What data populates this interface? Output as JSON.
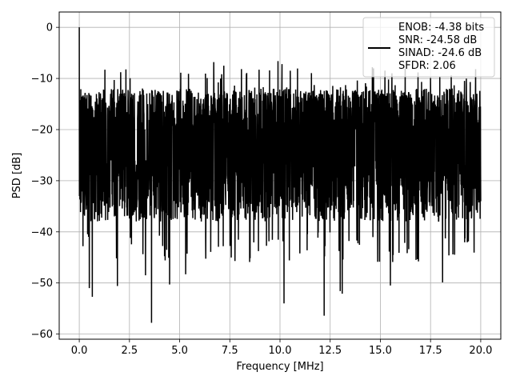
{
  "chart_data": {
    "type": "line",
    "xlabel": "Frequency [MHz]",
    "ylabel": "PSD [dB]",
    "xlim": [
      -1.0,
      21.0
    ],
    "ylim": [
      -61,
      3
    ],
    "grid": true,
    "x_ticks": [
      0.0,
      2.5,
      5.0,
      7.5,
      10.0,
      12.5,
      15.0,
      17.5,
      20.0
    ],
    "x_tick_labels": [
      "0.0",
      "2.5",
      "5.0",
      "7.5",
      "10.0",
      "12.5",
      "15.0",
      "17.5",
      "20.0"
    ],
    "y_ticks": [
      0,
      -10,
      -20,
      -30,
      -40,
      -50,
      -60
    ],
    "y_tick_labels": [
      "0",
      "−10",
      "−20",
      "−30",
      "−40",
      "−50",
      "−60"
    ],
    "legend": {
      "placement": "top-right",
      "entries": [
        "ENOB: -4.38 bits",
        "SNR: -24.58 dB",
        "SINAD: -24.6 dB",
        "SFDR: 2.06"
      ]
    },
    "series": [
      {
        "color": "#000000",
        "x_range": [
          0.0,
          20.0
        ],
        "noise_floor_db": [
          -38,
          -16
        ],
        "typical_peak_db": -12,
        "max_spur_db": -6.5,
        "min_dip_db": -57.8,
        "dc_peak": {
          "x": 0.0,
          "y": 0.0
        },
        "notable_dips": [
          {
            "x": 0.5,
            "y": -51.0
          },
          {
            "x": 0.65,
            "y": -52.7
          },
          {
            "x": 1.9,
            "y": -50.6
          },
          {
            "x": 3.3,
            "y": -48.5
          },
          {
            "x": 3.6,
            "y": -57.8
          },
          {
            "x": 4.5,
            "y": -50.3
          },
          {
            "x": 5.3,
            "y": -48.3
          },
          {
            "x": 10.2,
            "y": -54.0
          },
          {
            "x": 12.2,
            "y": -56.4
          },
          {
            "x": 13.0,
            "y": -51.6
          },
          {
            "x": 13.1,
            "y": -52.1
          },
          {
            "x": 15.5,
            "y": -50.5
          },
          {
            "x": 18.1,
            "y": -49.9
          }
        ],
        "notable_peaks": [
          {
            "x": 6.7,
            "y": -6.8
          },
          {
            "x": 9.9,
            "y": -6.6
          },
          {
            "x": 10.1,
            "y": -7.2
          },
          {
            "x": 14.6,
            "y": -7.8
          },
          {
            "x": 7.2,
            "y": -7.5
          }
        ]
      }
    ]
  }
}
